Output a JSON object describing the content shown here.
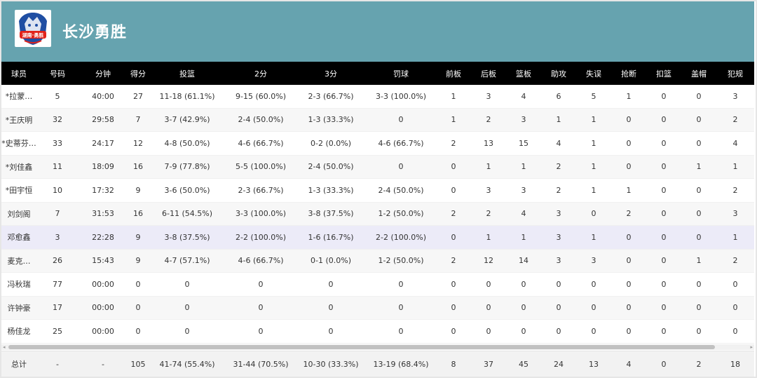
{
  "team": {
    "name": "长沙勇胜",
    "logo_text": "湖南·勇胜",
    "logo_colors": [
      "#1f4ea3",
      "#e2231a",
      "#ffffff"
    ]
  },
  "colors": {
    "header_bg": "#66a3af",
    "table_header_bg": "#000000",
    "highlight_row": "#ecebf8"
  },
  "columns": [
    "球员",
    "号码",
    "分钟",
    "得分",
    "投篮",
    "2分",
    "3分",
    "罚球",
    "前板",
    "后板",
    "篮板",
    "助攻",
    "失误",
    "抢断",
    "扣篮",
    "盖帽",
    "犯规"
  ],
  "rows": [
    [
      "*拉蒙…",
      "5",
      "40:00",
      "27",
      "11-18 (61.1%)",
      "9-15 (60.0%)",
      "2-3 (66.7%)",
      "3-3 (100.0%)",
      "1",
      "3",
      "4",
      "6",
      "5",
      "1",
      "0",
      "0",
      "3"
    ],
    [
      "*王庆明",
      "32",
      "29:58",
      "7",
      "3-7 (42.9%)",
      "2-4 (50.0%)",
      "1-3 (33.3%)",
      "0",
      "1",
      "2",
      "3",
      "1",
      "1",
      "0",
      "0",
      "0",
      "2"
    ],
    [
      "*史蒂芬…",
      "33",
      "24:17",
      "12",
      "4-8 (50.0%)",
      "4-6 (66.7%)",
      "0-2 (0.0%)",
      "4-6 (66.7%)",
      "2",
      "13",
      "15",
      "4",
      "1",
      "0",
      "0",
      "0",
      "4"
    ],
    [
      "*刘佳鑫",
      "11",
      "18:09",
      "16",
      "7-9 (77.8%)",
      "5-5 (100.0%)",
      "2-4 (50.0%)",
      "0",
      "0",
      "1",
      "1",
      "2",
      "1",
      "0",
      "0",
      "1",
      "1"
    ],
    [
      "*田宇恒",
      "10",
      "17:32",
      "9",
      "3-6 (50.0%)",
      "2-3 (66.7%)",
      "1-3 (33.3%)",
      "2-4 (50.0%)",
      "0",
      "3",
      "3",
      "2",
      "1",
      "1",
      "0",
      "0",
      "2"
    ],
    [
      "刘剑阁",
      "7",
      "31:53",
      "16",
      "6-11 (54.5%)",
      "3-3 (100.0%)",
      "3-8 (37.5%)",
      "1-2 (50.0%)",
      "2",
      "2",
      "4",
      "3",
      "0",
      "2",
      "0",
      "0",
      "3"
    ],
    [
      "邓愈鑫",
      "3",
      "22:28",
      "9",
      "3-8 (37.5%)",
      "2-2 (100.0%)",
      "1-6 (16.7%)",
      "2-2 (100.0%)",
      "0",
      "1",
      "1",
      "3",
      "1",
      "0",
      "0",
      "0",
      "1"
    ],
    [
      "麦克…",
      "26",
      "15:43",
      "9",
      "4-7 (57.1%)",
      "4-6 (66.7%)",
      "0-1 (0.0%)",
      "1-2 (50.0%)",
      "2",
      "12",
      "14",
      "3",
      "3",
      "0",
      "0",
      "1",
      "2"
    ],
    [
      "冯秋瑞",
      "77",
      "00:00",
      "0",
      "0",
      "0",
      "0",
      "0",
      "0",
      "0",
      "0",
      "0",
      "0",
      "0",
      "0",
      "0",
      "0"
    ],
    [
      "许钟豪",
      "17",
      "00:00",
      "0",
      "0",
      "0",
      "0",
      "0",
      "0",
      "0",
      "0",
      "0",
      "0",
      "0",
      "0",
      "0",
      "0"
    ],
    [
      "杨佳龙",
      "25",
      "00:00",
      "0",
      "0",
      "0",
      "0",
      "0",
      "0",
      "0",
      "0",
      "0",
      "0",
      "0",
      "0",
      "0",
      "0"
    ]
  ],
  "total": [
    "总计",
    "-",
    "-",
    "105",
    "41-74 (55.4%)",
    "31-44 (70.5%)",
    "10-30 (33.3%)",
    "13-19 (68.4%)",
    "8",
    "37",
    "45",
    "24",
    "13",
    "4",
    "0",
    "2",
    "18"
  ],
  "scrollbar": {
    "left_arrow": "◂",
    "right_arrow": "▸"
  }
}
